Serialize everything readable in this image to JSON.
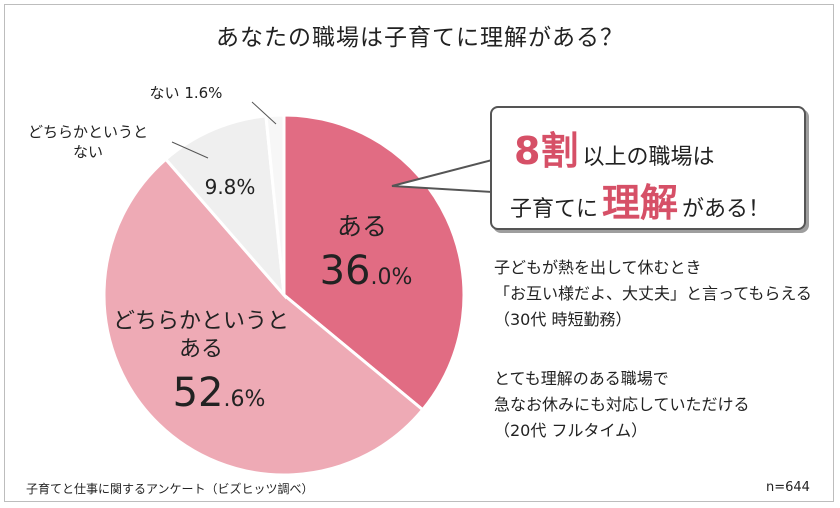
{
  "chart_data": {
    "type": "pie",
    "title": "あなたの職場は子育てに理解がある？",
    "slices": [
      {
        "label": "ある",
        "value": 36.0,
        "value_main": "36",
        "value_dec": ".0%",
        "color": "#e16c83"
      },
      {
        "label": "どちらかというとある",
        "label_line1": "どちらかというと",
        "label_line2": "ある",
        "value": 52.6,
        "value_main": "52",
        "value_dec": ".6%",
        "color": "#eeaab5"
      },
      {
        "label": "どちらかというとない",
        "label_line1": "どちらかというと",
        "label_line2": "ない",
        "value": 9.8,
        "value_text": "9.8%",
        "color": "#efefef"
      },
      {
        "label": "ない",
        "value": 1.6,
        "value_text": "ない 1.6%",
        "color": "#f7f7f7"
      }
    ],
    "sample_size": "n=644"
  },
  "callout": {
    "highlight1": "8割",
    "text1": "以上の職場は",
    "text2a": "子育てに",
    "highlight2": "理解",
    "text2b": "がある！"
  },
  "quotes": [
    {
      "line1": "子どもが熱を出して休むとき",
      "line2": "「お互い様だよ、大丈夫」と言ってもらえる",
      "line3": "（30代 時短勤務）"
    },
    {
      "line1": "とても理解のある職場で",
      "line2": "急なお休みにも対応していただける",
      "line3": "（20代 フルタイム）"
    }
  ],
  "footer": {
    "source": "子育てと仕事に関するアンケート（ビズヒッツ調べ）",
    "n": "n=644"
  }
}
